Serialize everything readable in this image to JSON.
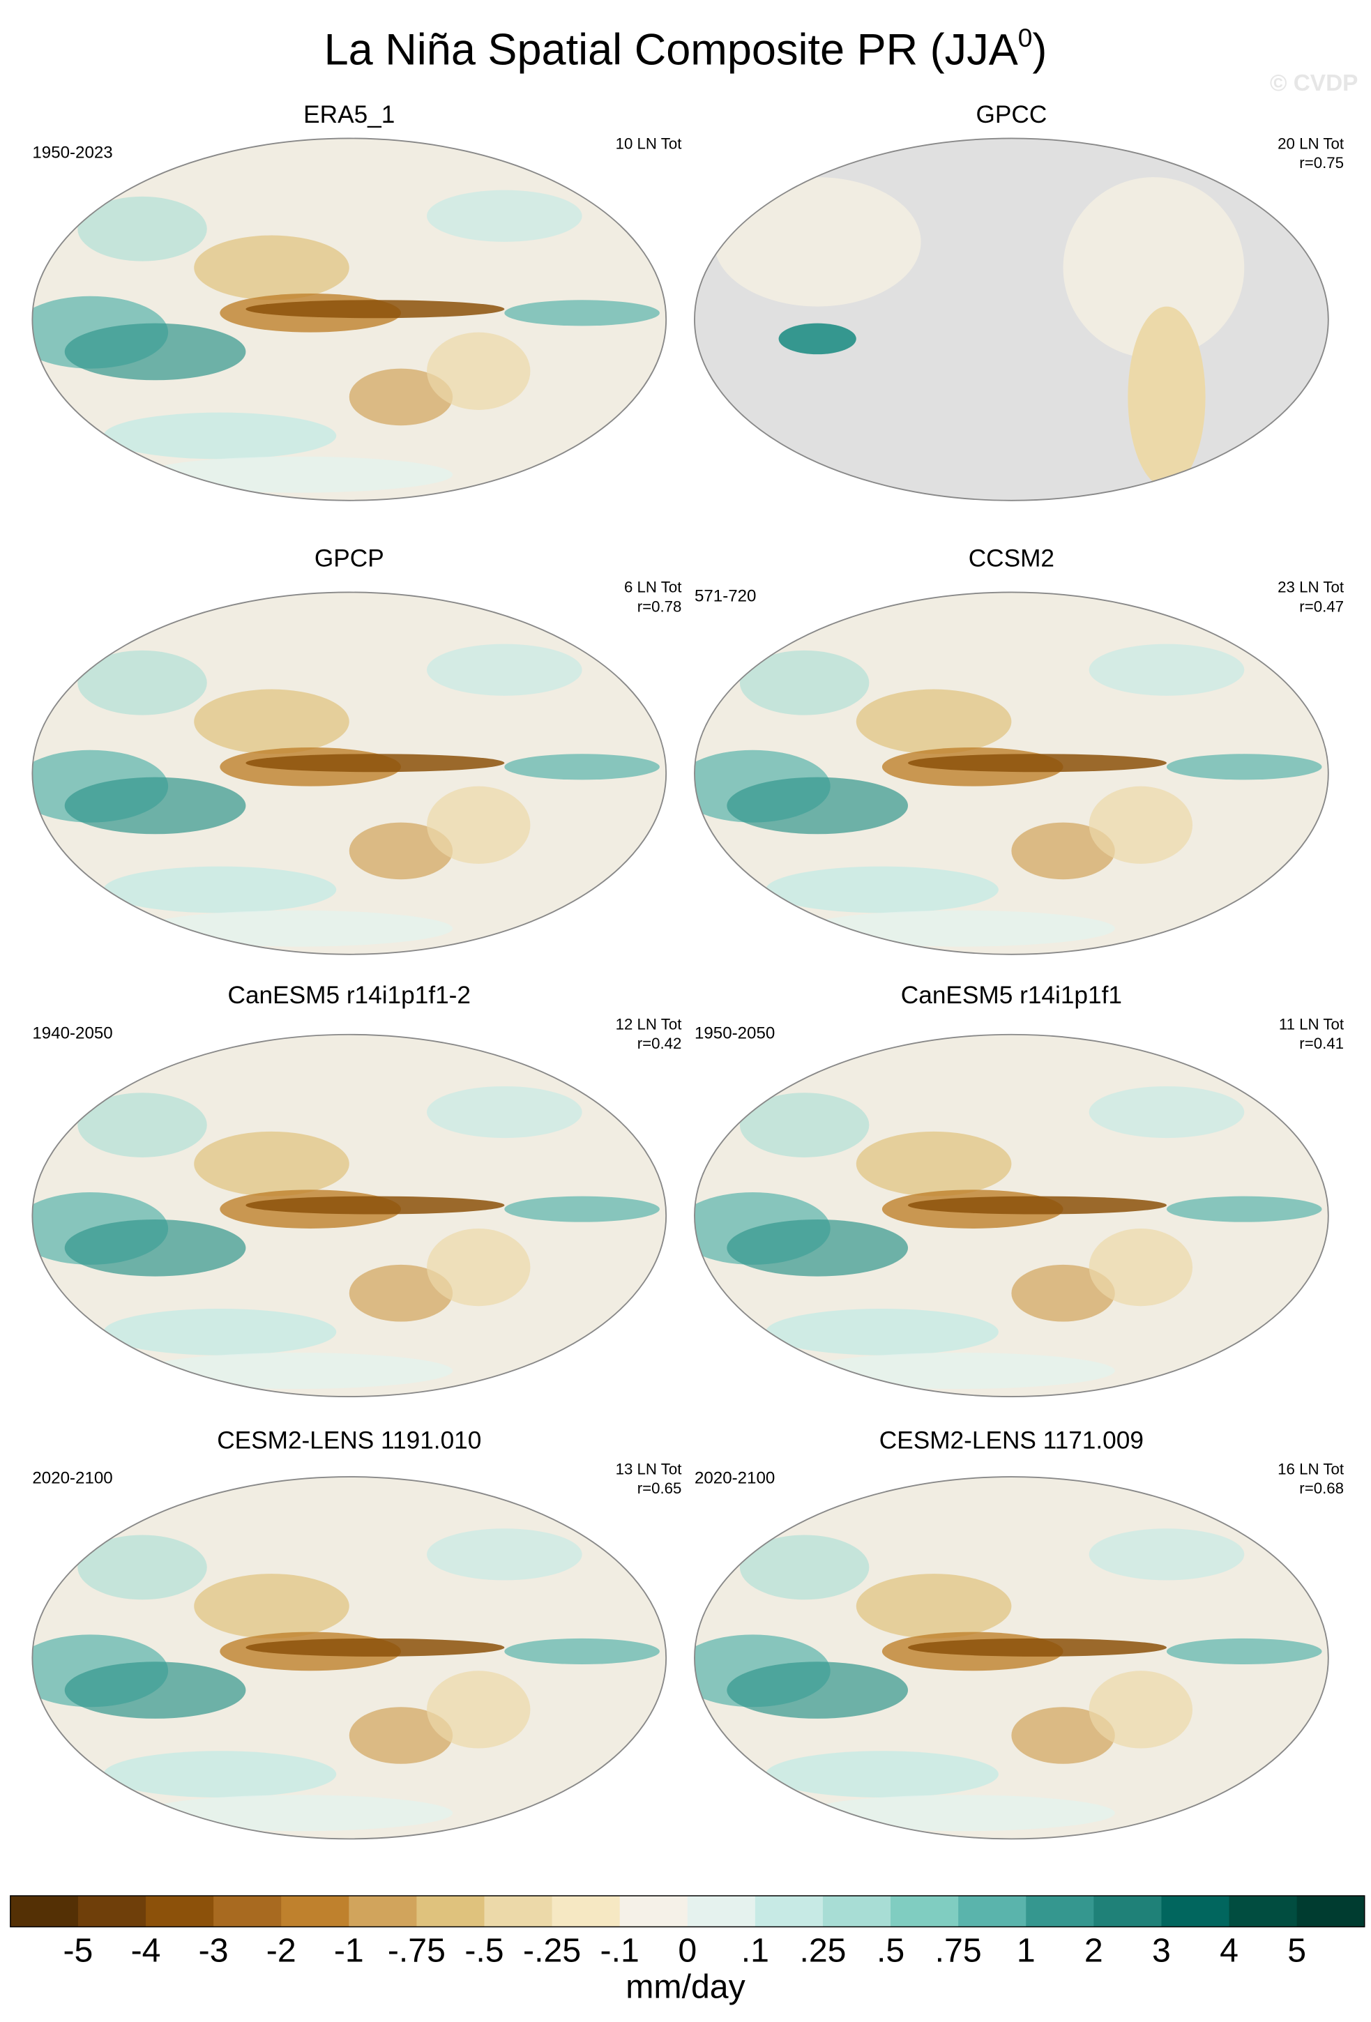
{
  "header": {
    "title": "La Niña Spatial Composite PR (JJA",
    "title_superscript": "0",
    "title_end": ")",
    "watermark": "© CVDP"
  },
  "panels": [
    {
      "title": "ERA5_1",
      "period": "1950-2023",
      "stats": [
        "10 LN Tot"
      ]
    },
    {
      "title": "GPCC",
      "stats": [
        "20 LN Tot",
        "r=0.75"
      ]
    },
    {
      "title": "GPCP",
      "stats": [
        "6 LN Tot",
        "r=0.78"
      ]
    },
    {
      "title": "CCSM2",
      "period": "571-720",
      "stats": [
        "23 LN Tot",
        "r=0.47"
      ]
    },
    {
      "title": "CanESM5 r14i1p1f1-2",
      "period": "1940-2050",
      "stats": [
        "12 LN Tot",
        "r=0.42"
      ]
    },
    {
      "title": "CanESM5 r14i1p1f1",
      "period": "1950-2050",
      "stats": [
        "11 LN Tot",
        "r=0.41"
      ]
    },
    {
      "title": "CESM2-LENS 1191.010",
      "period": "2020-2100",
      "stats": [
        "13 LN Tot",
        "r=0.65"
      ]
    },
    {
      "title": "CESM2-LENS 1171.009",
      "period": "2020-2100",
      "stats": [
        "16 LN Tot",
        "r=0.68"
      ]
    }
  ],
  "colorbar": {
    "colors": [
      "#543005",
      "#6f3f0a",
      "#8c510a",
      "#a86a20",
      "#bf812d",
      "#d1a45c",
      "#dfc27d",
      "#ecd9a9",
      "#f6e8c3",
      "#f5f1e8",
      "#e5f2ee",
      "#c7eae5",
      "#a8ddd5",
      "#80cdc1",
      "#5ab4ac",
      "#35978f",
      "#1f8178",
      "#01665e",
      "#014d40",
      "#003c30"
    ],
    "labels": [
      "-5",
      "-4",
      "-3",
      "-2",
      "-1",
      "-.75",
      "-.5",
      "-.25",
      "-.1",
      "0",
      ".1",
      ".25",
      ".5",
      ".75",
      "1",
      "2",
      "3",
      "4",
      "5"
    ],
    "unit": "mm/day"
  }
}
